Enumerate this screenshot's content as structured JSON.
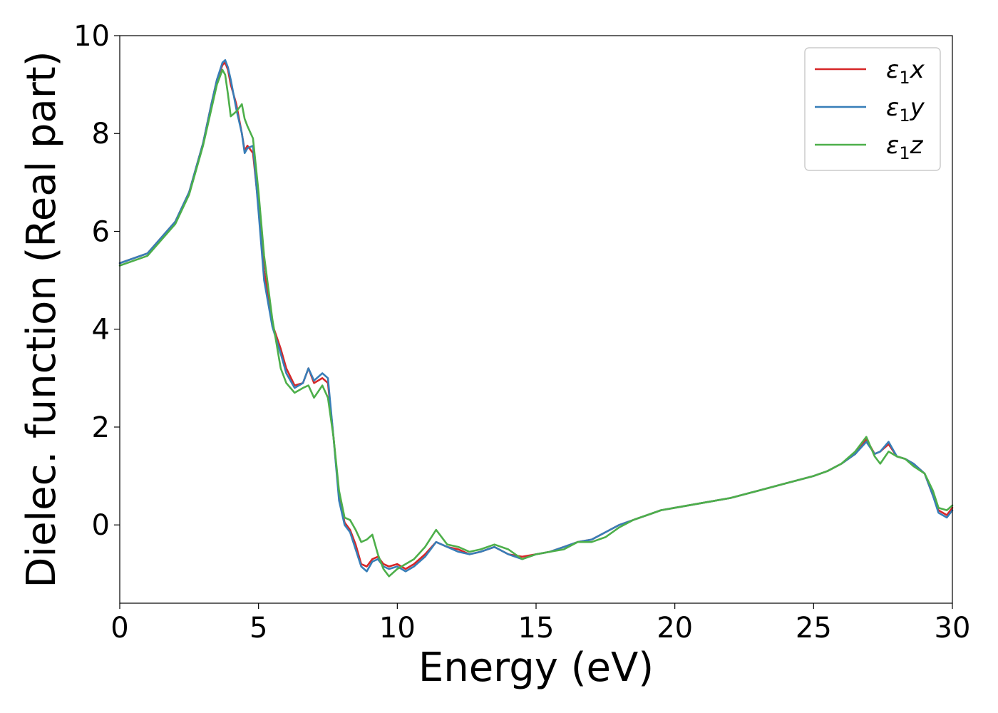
{
  "chart_data": {
    "type": "line",
    "title": "",
    "xlabel": "Energy (eV)",
    "ylabel": "Dielec. function (Real part)",
    "xlim": [
      0,
      30
    ],
    "ylim": [
      -1.6,
      10
    ],
    "x_ticks": [
      "0",
      "5",
      "10",
      "15",
      "20",
      "25",
      "30"
    ],
    "y_ticks": [
      "0",
      "2",
      "4",
      "6",
      "8",
      "10"
    ],
    "grid": false,
    "legend_position": "top-right",
    "series": [
      {
        "name": "ε₁x",
        "legend_main": "ε",
        "legend_sub": "1",
        "legend_var": "x",
        "color": "#d62728",
        "x": [
          0,
          1,
          2,
          2.5,
          3,
          3.3,
          3.5,
          3.7,
          3.8,
          3.9,
          4.0,
          4.2,
          4.4,
          4.5,
          4.6,
          4.8,
          5.0,
          5.2,
          5.5,
          5.8,
          6.0,
          6.3,
          6.6,
          6.8,
          7.0,
          7.3,
          7.5,
          7.7,
          7.9,
          8.1,
          8.3,
          8.5,
          8.7,
          8.9,
          9.1,
          9.3,
          9.5,
          9.7,
          10.0,
          10.3,
          10.6,
          11.0,
          11.4,
          11.8,
          12.2,
          12.6,
          13.0,
          13.5,
          14.0,
          14.5,
          15.0,
          15.5,
          16.0,
          16.5,
          17.0,
          17.5,
          18.0,
          18.5,
          19.0,
          19.5,
          20.0,
          21.0,
          22.0,
          23.0,
          24.0,
          25.0,
          25.5,
          26.0,
          26.5,
          26.9,
          27.2,
          27.4,
          27.7,
          28.0,
          28.3,
          28.6,
          29.0,
          29.3,
          29.5,
          29.8,
          30.0
        ],
        "y": [
          5.35,
          5.55,
          6.2,
          6.8,
          7.8,
          8.6,
          9.1,
          9.4,
          9.45,
          9.3,
          9.0,
          8.6,
          8.0,
          7.65,
          7.75,
          7.6,
          6.5,
          5.2,
          4.1,
          3.6,
          3.2,
          2.85,
          2.9,
          3.2,
          2.9,
          3.0,
          2.9,
          1.8,
          0.6,
          0.05,
          -0.1,
          -0.4,
          -0.8,
          -0.85,
          -0.7,
          -0.65,
          -0.8,
          -0.85,
          -0.8,
          -0.9,
          -0.8,
          -0.6,
          -0.35,
          -0.45,
          -0.5,
          -0.6,
          -0.55,
          -0.45,
          -0.6,
          -0.65,
          -0.6,
          -0.55,
          -0.45,
          -0.35,
          -0.3,
          -0.15,
          0.0,
          0.1,
          0.2,
          0.3,
          0.35,
          0.45,
          0.55,
          0.7,
          0.85,
          1.0,
          1.1,
          1.25,
          1.45,
          1.75,
          1.45,
          1.5,
          1.65,
          1.4,
          1.35,
          1.25,
          1.05,
          0.6,
          0.3,
          0.2,
          0.35
        ]
      },
      {
        "name": "ε₁y",
        "legend_main": "ε",
        "legend_sub": "1",
        "legend_var": "y",
        "color": "#377eb8",
        "x": [
          0,
          1,
          2,
          2.5,
          3,
          3.3,
          3.5,
          3.7,
          3.8,
          3.9,
          4.0,
          4.2,
          4.4,
          4.5,
          4.6,
          4.8,
          5.0,
          5.2,
          5.5,
          5.8,
          6.0,
          6.3,
          6.6,
          6.8,
          7.0,
          7.3,
          7.5,
          7.7,
          7.9,
          8.1,
          8.3,
          8.5,
          8.7,
          8.9,
          9.1,
          9.3,
          9.5,
          9.7,
          10.0,
          10.3,
          10.6,
          11.0,
          11.4,
          11.8,
          12.2,
          12.6,
          13.0,
          13.5,
          14.0,
          14.5,
          15.0,
          15.5,
          16.0,
          16.5,
          17.0,
          17.5,
          18.0,
          18.5,
          19.0,
          19.5,
          20.0,
          21.0,
          22.0,
          23.0,
          24.0,
          25.0,
          25.5,
          26.0,
          26.5,
          26.9,
          27.2,
          27.4,
          27.7,
          28.0,
          28.3,
          28.6,
          29.0,
          29.3,
          29.5,
          29.8,
          30.0
        ],
        "y": [
          5.35,
          5.55,
          6.2,
          6.8,
          7.8,
          8.6,
          9.1,
          9.45,
          9.5,
          9.35,
          9.1,
          8.5,
          8.0,
          7.6,
          7.7,
          7.75,
          6.4,
          5.0,
          4.05,
          3.5,
          3.1,
          2.8,
          2.9,
          3.2,
          2.95,
          3.1,
          3.0,
          1.8,
          0.5,
          0.0,
          -0.15,
          -0.5,
          -0.85,
          -0.95,
          -0.75,
          -0.7,
          -0.85,
          -0.9,
          -0.85,
          -0.95,
          -0.85,
          -0.65,
          -0.35,
          -0.45,
          -0.55,
          -0.6,
          -0.55,
          -0.45,
          -0.6,
          -0.7,
          -0.6,
          -0.55,
          -0.45,
          -0.35,
          -0.3,
          -0.15,
          0.0,
          0.1,
          0.2,
          0.3,
          0.35,
          0.45,
          0.55,
          0.7,
          0.85,
          1.0,
          1.1,
          1.25,
          1.45,
          1.7,
          1.45,
          1.5,
          1.7,
          1.4,
          1.35,
          1.25,
          1.05,
          0.6,
          0.25,
          0.15,
          0.3
        ]
      },
      {
        "name": "ε₁z",
        "legend_main": "ε",
        "legend_sub": "1",
        "legend_var": "z",
        "color": "#4daf4a",
        "x": [
          0,
          1,
          2,
          2.5,
          3,
          3.3,
          3.5,
          3.7,
          3.8,
          3.9,
          4.0,
          4.2,
          4.4,
          4.5,
          4.6,
          4.8,
          5.0,
          5.2,
          5.5,
          5.8,
          6.0,
          6.3,
          6.6,
          6.8,
          7.0,
          7.3,
          7.5,
          7.7,
          7.9,
          8.1,
          8.3,
          8.5,
          8.7,
          8.9,
          9.1,
          9.3,
          9.5,
          9.7,
          10.0,
          10.3,
          10.6,
          11.0,
          11.4,
          11.8,
          12.2,
          12.6,
          13.0,
          13.5,
          14.0,
          14.5,
          15.0,
          15.5,
          16.0,
          16.5,
          17.0,
          17.5,
          18.0,
          18.5,
          19.0,
          19.5,
          20.0,
          21.0,
          22.0,
          23.0,
          24.0,
          25.0,
          25.5,
          26.0,
          26.5,
          26.9,
          27.2,
          27.4,
          27.7,
          28.0,
          28.3,
          28.6,
          29.0,
          29.3,
          29.5,
          29.8,
          30.0
        ],
        "y": [
          5.3,
          5.5,
          6.15,
          6.75,
          7.75,
          8.5,
          9.0,
          9.3,
          9.2,
          8.8,
          8.35,
          8.45,
          8.6,
          8.3,
          8.15,
          7.9,
          6.8,
          5.5,
          4.2,
          3.2,
          2.9,
          2.7,
          2.8,
          2.85,
          2.6,
          2.85,
          2.6,
          1.8,
          0.7,
          0.15,
          0.1,
          -0.1,
          -0.35,
          -0.3,
          -0.2,
          -0.6,
          -0.9,
          -1.05,
          -0.9,
          -0.8,
          -0.7,
          -0.45,
          -0.1,
          -0.4,
          -0.45,
          -0.55,
          -0.5,
          -0.4,
          -0.5,
          -0.7,
          -0.6,
          -0.55,
          -0.5,
          -0.35,
          -0.35,
          -0.25,
          -0.05,
          0.1,
          0.2,
          0.3,
          0.35,
          0.45,
          0.55,
          0.7,
          0.85,
          1.0,
          1.1,
          1.25,
          1.5,
          1.8,
          1.4,
          1.25,
          1.5,
          1.4,
          1.35,
          1.2,
          1.05,
          0.7,
          0.35,
          0.3,
          0.4
        ]
      }
    ]
  }
}
